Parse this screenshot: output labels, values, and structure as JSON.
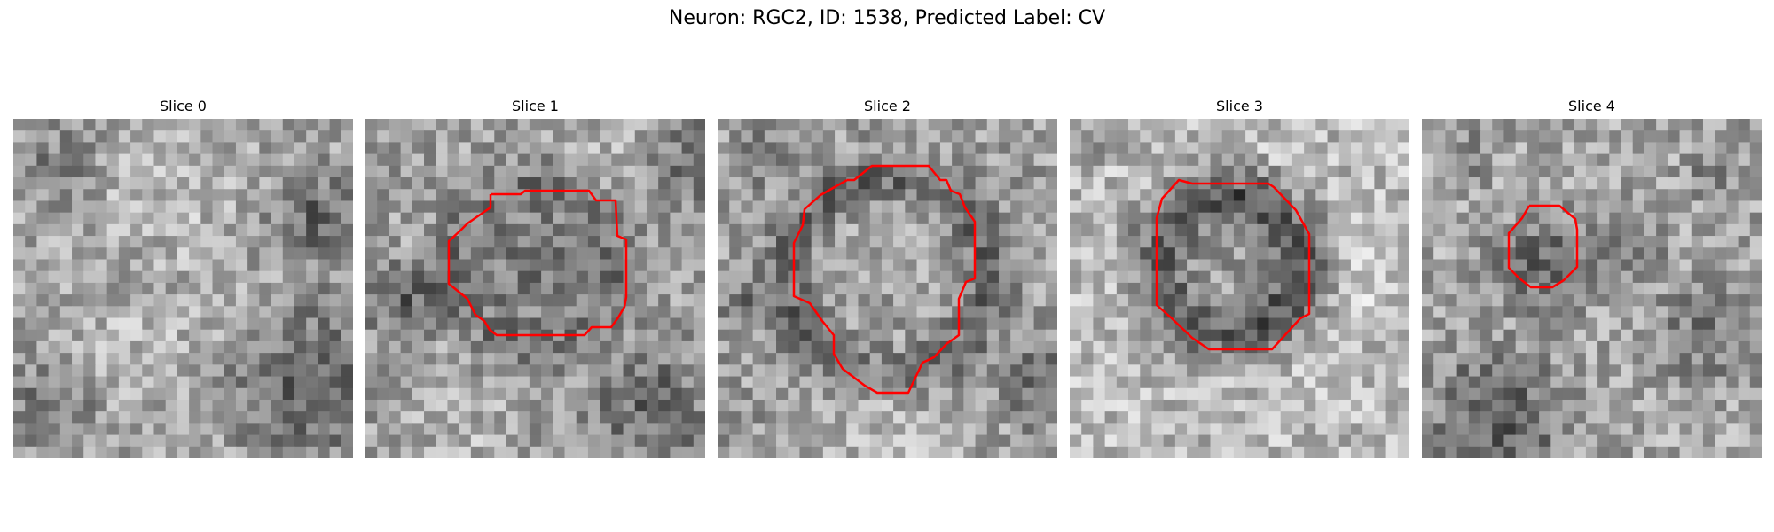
{
  "figure": {
    "title": "Neuron: RGC2, ID: 1538, Predicted Label: CV",
    "colormap": "grayscale",
    "contour_color": "#ff0000",
    "panels": [
      {
        "title": "Slice 0",
        "has_contour": false
      },
      {
        "title": "Slice 1",
        "has_contour": true
      },
      {
        "title": "Slice 2",
        "has_contour": true
      },
      {
        "title": "Slice 3",
        "has_contour": true
      },
      {
        "title": "Slice 4",
        "has_contour": true
      }
    ]
  }
}
